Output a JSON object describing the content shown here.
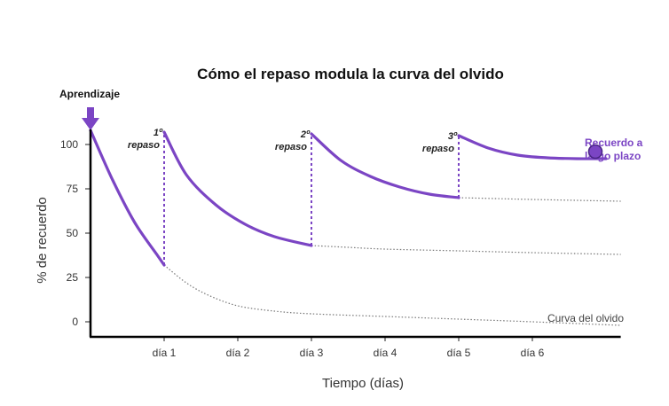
{
  "chart_data": {
    "type": "line",
    "title": "Cómo el repaso modula la curva del olvido",
    "xlabel": "Tiempo (días)",
    "ylabel": "% de recuerdo",
    "ylim": [
      0,
      100
    ],
    "xlim": [
      0,
      7.2
    ],
    "y_ticks": [
      0,
      25,
      50,
      75,
      100
    ],
    "x_ticks": [
      {
        "value": 1,
        "label": "día 1"
      },
      {
        "value": 2,
        "label": "día 2"
      },
      {
        "value": 3,
        "label": "día 3"
      },
      {
        "value": 4,
        "label": "día 4"
      },
      {
        "value": 5,
        "label": "día 5"
      },
      {
        "value": 6,
        "label": "día 6"
      }
    ],
    "colors": {
      "review": "#7b45c4",
      "forgetting": "#777777",
      "axis": "#000000"
    },
    "learning_marker": {
      "label": "Aprendizaje",
      "x": 0,
      "y": 108
    },
    "review_segments": [
      {
        "x": [
          0,
          0.3,
          0.6,
          0.9,
          1.0
        ],
        "y": [
          108,
          80,
          56,
          38,
          32
        ]
      },
      {
        "x": [
          1.0,
          1.3,
          1.7,
          2.1,
          2.5,
          3.0
        ],
        "y": [
          107,
          83,
          66,
          55,
          48,
          43
        ]
      },
      {
        "x": [
          3.0,
          3.4,
          3.8,
          4.2,
          4.6,
          5.0
        ],
        "y": [
          106,
          91,
          82,
          76,
          72,
          70
        ]
      },
      {
        "x": [
          5.0,
          5.4,
          5.8,
          6.2,
          6.6,
          7.0
        ],
        "y": [
          105,
          98,
          94,
          92.5,
          92,
          92
        ]
      }
    ],
    "reviews": [
      {
        "x": 1,
        "label_line1": "1º",
        "label_line2": "repaso",
        "from": 32,
        "to": 107
      },
      {
        "x": 3,
        "label_line1": "2º",
        "label_line2": "repaso",
        "from": 43,
        "to": 106
      },
      {
        "x": 5,
        "label_line1": "3º",
        "label_line2": "repaso",
        "from": 70,
        "to": 105
      }
    ],
    "forgetting_curves": [
      {
        "name": "Curva del olvido",
        "x": [
          1.0,
          1.3,
          1.6,
          2.0,
          2.5,
          3.0,
          4.0,
          5.0,
          6.0,
          7.2
        ],
        "y": [
          32,
          22,
          15,
          9,
          6,
          4.5,
          3,
          1.5,
          0,
          -2
        ]
      },
      {
        "x": [
          3.0,
          3.5,
          4.0,
          5.0,
          6.0,
          7.2
        ],
        "y": [
          43,
          42,
          41,
          40,
          39,
          38
        ]
      },
      {
        "x": [
          5.0,
          5.5,
          6.0,
          7.2
        ],
        "y": [
          70,
          69.5,
          69,
          68
        ]
      }
    ],
    "forgetting_label": "Curva del olvido",
    "long_term": {
      "label_line1": "Recuerdo a",
      "label_line2": "largo plazo",
      "x": 7.0,
      "y": 96
    }
  }
}
